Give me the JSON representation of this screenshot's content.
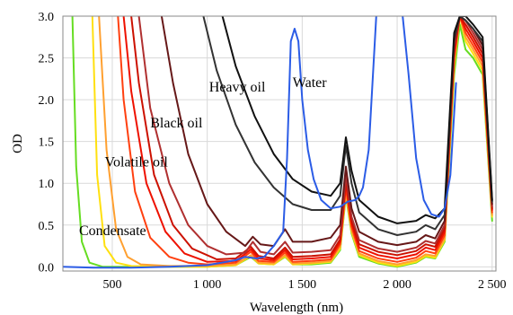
{
  "chart_data": {
    "type": "line",
    "title": "",
    "xlabel": "Wavelength (nm)",
    "ylabel": "OD",
    "xlim": [
      240,
      2520
    ],
    "ylim": [
      -0.05,
      3.0
    ],
    "grid": true,
    "x_ticks": [
      500,
      1000,
      1500,
      2000,
      2500
    ],
    "x_tick_labels": [
      "500",
      "1 000",
      "1 500",
      "2 000",
      "2 500"
    ],
    "y_ticks": [
      0.0,
      0.5,
      1.0,
      1.5,
      2.0,
      2.5,
      3.0
    ],
    "y_tick_labels": [
      "0.0",
      "0.5",
      "1.0",
      "1.5",
      "2.0",
      "2.5",
      "3.0"
    ],
    "annotations": [
      {
        "text": "Condensate",
        "x": 325,
        "y": 0.38
      },
      {
        "text": "Volatile oil",
        "x": 460,
        "y": 1.2
      },
      {
        "text": "Black oil",
        "x": 700,
        "y": 1.67
      },
      {
        "text": "Heavy oil",
        "x": 1010,
        "y": 2.1
      },
      {
        "text": "Water",
        "x": 1450,
        "y": 2.15
      }
    ],
    "series": [
      {
        "color": "#66dd22",
        "x": [
          290,
          310,
          340,
          380,
          450,
          600,
          800,
          1000,
          1150,
          1230,
          1270,
          1350,
          1410,
          1450,
          1550,
          1650,
          1700,
          1730,
          1760,
          1800,
          1900,
          2000,
          2100,
          2150,
          2200,
          2250,
          2300,
          2330,
          2360,
          2400,
          2450,
          2500
        ],
        "y": [
          3.0,
          1.2,
          0.3,
          0.05,
          0.0,
          0.0,
          0.0,
          0.0,
          0.02,
          0.12,
          0.04,
          0.03,
          0.12,
          0.03,
          0.03,
          0.05,
          0.2,
          0.85,
          0.4,
          0.12,
          0.04,
          0.0,
          0.05,
          0.12,
          0.1,
          0.3,
          2.3,
          2.9,
          2.6,
          2.5,
          2.3,
          0.55
        ]
      },
      {
        "color": "#ffe010",
        "x": [
          395,
          420,
          460,
          520,
          600,
          800,
          1000,
          1150,
          1230,
          1270,
          1350,
          1410,
          1450,
          1550,
          1650,
          1700,
          1730,
          1760,
          1800,
          1900,
          2000,
          2100,
          2150,
          2200,
          2250,
          2300,
          2330,
          2360,
          2400,
          2450,
          2500
        ],
        "y": [
          3.0,
          1.1,
          0.25,
          0.05,
          0.01,
          0.0,
          0.0,
          0.02,
          0.13,
          0.04,
          0.03,
          0.13,
          0.03,
          0.04,
          0.06,
          0.22,
          0.88,
          0.42,
          0.14,
          0.05,
          0.01,
          0.06,
          0.13,
          0.11,
          0.32,
          2.4,
          3.0,
          2.7,
          2.55,
          2.35,
          0.6
        ]
      },
      {
        "color": "#ffa030",
        "x": [
          430,
          470,
          520,
          580,
          650,
          800,
          1000,
          1150,
          1230,
          1270,
          1350,
          1410,
          1450,
          1550,
          1650,
          1700,
          1730,
          1760,
          1800,
          1900,
          2000,
          2100,
          2150,
          2200,
          2250,
          2300,
          2330,
          2360,
          2400,
          2450,
          2500
        ],
        "y": [
          3.0,
          1.4,
          0.45,
          0.12,
          0.03,
          0.01,
          0.01,
          0.03,
          0.14,
          0.05,
          0.04,
          0.14,
          0.04,
          0.05,
          0.07,
          0.24,
          0.9,
          0.44,
          0.16,
          0.07,
          0.03,
          0.08,
          0.15,
          0.13,
          0.34,
          2.45,
          3.0,
          2.75,
          2.6,
          2.4,
          0.62
        ]
      },
      {
        "color": "#ff4010",
        "x": [
          530,
          560,
          620,
          700,
          800,
          900,
          1000,
          1150,
          1230,
          1270,
          1350,
          1410,
          1450,
          1550,
          1650,
          1700,
          1730,
          1760,
          1800,
          1900,
          2000,
          2100,
          2150,
          2200,
          2250,
          2300,
          2330,
          2360,
          2400,
          2450,
          2500
        ],
        "y": [
          3.0,
          2.0,
          0.9,
          0.35,
          0.12,
          0.05,
          0.03,
          0.05,
          0.18,
          0.07,
          0.06,
          0.17,
          0.06,
          0.07,
          0.09,
          0.27,
          0.95,
          0.48,
          0.19,
          0.1,
          0.06,
          0.11,
          0.19,
          0.16,
          0.38,
          2.5,
          3.0,
          2.8,
          2.65,
          2.45,
          0.65
        ]
      },
      {
        "color": "#ee1100",
        "x": [
          560,
          600,
          680,
          780,
          880,
          1000,
          1150,
          1230,
          1270,
          1350,
          1410,
          1450,
          1550,
          1650,
          1700,
          1730,
          1760,
          1800,
          1900,
          2000,
          2100,
          2150,
          2200,
          2250,
          2300,
          2330,
          2360,
          2400,
          2450,
          2500
        ],
        "y": [
          3.0,
          2.1,
          1.0,
          0.42,
          0.16,
          0.06,
          0.07,
          0.21,
          0.1,
          0.08,
          0.2,
          0.09,
          0.1,
          0.12,
          0.3,
          1.0,
          0.52,
          0.23,
          0.14,
          0.1,
          0.15,
          0.23,
          0.2,
          0.42,
          2.55,
          3.0,
          2.85,
          2.7,
          2.5,
          0.68
        ]
      },
      {
        "color": "#cc1100",
        "x": [
          600,
          640,
          720,
          820,
          920,
          1050,
          1150,
          1230,
          1270,
          1350,
          1410,
          1450,
          1550,
          1650,
          1700,
          1730,
          1760,
          1800,
          1900,
          2000,
          2100,
          2150,
          2200,
          2250,
          2300,
          2330,
          2360,
          2400,
          2450,
          2500
        ],
        "y": [
          3.0,
          2.2,
          1.1,
          0.5,
          0.22,
          0.09,
          0.1,
          0.24,
          0.13,
          0.1,
          0.23,
          0.12,
          0.13,
          0.15,
          0.33,
          1.05,
          0.56,
          0.27,
          0.18,
          0.14,
          0.19,
          0.27,
          0.24,
          0.46,
          2.6,
          3.0,
          2.9,
          2.75,
          2.55,
          0.7
        ]
      },
      {
        "color": "#b03030",
        "x": [
          640,
          700,
          800,
          900,
          1000,
          1100,
          1200,
          1240,
          1280,
          1350,
          1410,
          1450,
          1550,
          1650,
          1700,
          1730,
          1760,
          1800,
          1900,
          2000,
          2100,
          2150,
          2200,
          2250,
          2300,
          2330,
          2360,
          2400,
          2450,
          2500
        ],
        "y": [
          3.0,
          1.9,
          1.0,
          0.5,
          0.25,
          0.15,
          0.17,
          0.3,
          0.18,
          0.15,
          0.3,
          0.17,
          0.18,
          0.2,
          0.38,
          1.1,
          0.6,
          0.32,
          0.22,
          0.18,
          0.23,
          0.31,
          0.28,
          0.5,
          2.65,
          3.0,
          2.95,
          2.8,
          2.6,
          0.72
        ]
      },
      {
        "color": "#661818",
        "x": [
          760,
          820,
          900,
          1000,
          1100,
          1200,
          1240,
          1280,
          1350,
          1410,
          1450,
          1550,
          1650,
          1700,
          1730,
          1760,
          1800,
          1900,
          2000,
          2100,
          2150,
          2200,
          2250,
          2300,
          2330,
          2360,
          2400,
          2450,
          2500
        ],
        "y": [
          3.0,
          2.2,
          1.35,
          0.75,
          0.42,
          0.25,
          0.36,
          0.27,
          0.25,
          0.45,
          0.3,
          0.3,
          0.35,
          0.5,
          1.2,
          0.7,
          0.42,
          0.3,
          0.26,
          0.3,
          0.38,
          0.34,
          0.55,
          2.7,
          3.0,
          2.95,
          2.85,
          2.65,
          0.75
        ]
      },
      {
        "color": "#333333",
        "x": [
          980,
          1050,
          1150,
          1250,
          1350,
          1450,
          1550,
          1650,
          1700,
          1730,
          1760,
          1800,
          1900,
          2000,
          2100,
          2150,
          2200,
          2250,
          2300,
          2330,
          2360,
          2400,
          2450,
          2500
        ],
        "y": [
          3.0,
          2.35,
          1.7,
          1.25,
          0.95,
          0.75,
          0.68,
          0.68,
          0.85,
          1.45,
          1.0,
          0.65,
          0.45,
          0.38,
          0.42,
          0.5,
          0.45,
          0.62,
          2.75,
          3.0,
          2.95,
          2.85,
          2.7,
          0.78
        ]
      },
      {
        "color": "#111111",
        "x": [
          1080,
          1150,
          1250,
          1350,
          1450,
          1550,
          1650,
          1700,
          1730,
          1760,
          1800,
          1900,
          2000,
          2100,
          2150,
          2200,
          2250,
          2300,
          2330,
          2360,
          2400,
          2450,
          2500
        ],
        "y": [
          3.0,
          2.4,
          1.8,
          1.35,
          1.05,
          0.9,
          0.85,
          1.0,
          1.55,
          1.15,
          0.8,
          0.6,
          0.52,
          0.55,
          0.62,
          0.58,
          0.7,
          2.8,
          3.0,
          3.0,
          2.9,
          2.75,
          0.8
        ]
      },
      {
        "color": "#2b5ce6",
        "x": [
          240,
          400,
          600,
          800,
          1000,
          1150,
          1200,
          1260,
          1300,
          1350,
          1400,
          1420,
          1440,
          1460,
          1480,
          1500,
          1530,
          1560,
          1600,
          1650,
          1700,
          1740,
          1780,
          1800,
          1820,
          1850,
          1870,
          1890,
          1910,
          2020,
          2060,
          2100,
          2140,
          2180,
          2220,
          2250,
          2280,
          2310
        ],
        "y": [
          0.0,
          -0.01,
          -0.01,
          0.0,
          0.02,
          0.08,
          0.12,
          0.1,
          0.12,
          0.25,
          0.42,
          1.3,
          2.7,
          2.85,
          2.7,
          2.0,
          1.4,
          1.05,
          0.8,
          0.7,
          0.72,
          0.78,
          0.8,
          0.85,
          0.95,
          1.4,
          2.2,
          3.0,
          3.2,
          3.2,
          2.3,
          1.3,
          0.8,
          0.63,
          0.6,
          0.7,
          1.1,
          2.2
        ]
      }
    ]
  }
}
